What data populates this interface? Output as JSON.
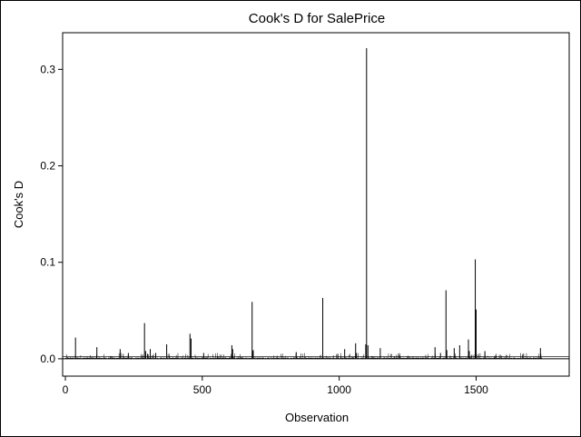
{
  "chart_data": {
    "type": "bar",
    "title": "Cook's D for SalePrice",
    "xlabel": "Observation",
    "ylabel": "Cook's D",
    "xlim": [
      -10,
      1840
    ],
    "ylim": [
      -0.018,
      0.338
    ],
    "x_ticks": [
      0,
      500,
      1000,
      1500
    ],
    "x_tick_labels": [
      "0",
      "500",
      "1000",
      "1500"
    ],
    "y_ticks": [
      0.0,
      0.1,
      0.2,
      0.3
    ],
    "y_tick_labels": [
      "0.0",
      "0.1",
      "0.2",
      "0.3"
    ],
    "reference_lines": [
      0,
      0.0023
    ],
    "grid": false,
    "legend": "none",
    "n_observations": 1740,
    "series": [
      {
        "x": [
          37,
          115,
          200,
          230,
          289,
          293,
          310,
          330,
          370,
          455,
          459,
          505,
          608,
          611,
          682,
          684,
          686,
          843,
          940,
          995,
          1020,
          1060,
          1063,
          1097,
          1100,
          1105,
          1150,
          1190,
          1350,
          1370,
          1390,
          1393,
          1420,
          1440,
          1472,
          1475,
          1497,
          1500,
          1532,
          1735
        ],
        "values": [
          0.022,
          0.012,
          0.01,
          0.006,
          0.037,
          0.008,
          0.01,
          0.006,
          0.015,
          0.026,
          0.021,
          0.006,
          0.014,
          0.01,
          0.059,
          0.008,
          0.009,
          0.007,
          0.063,
          0.005,
          0.01,
          0.016,
          0.006,
          0.015,
          0.322,
          0.014,
          0.011,
          0.005,
          0.012,
          0.006,
          0.071,
          0.009,
          0.011,
          0.014,
          0.02,
          0.008,
          0.103,
          0.051,
          0.008,
          0.011
        ]
      }
    ]
  }
}
